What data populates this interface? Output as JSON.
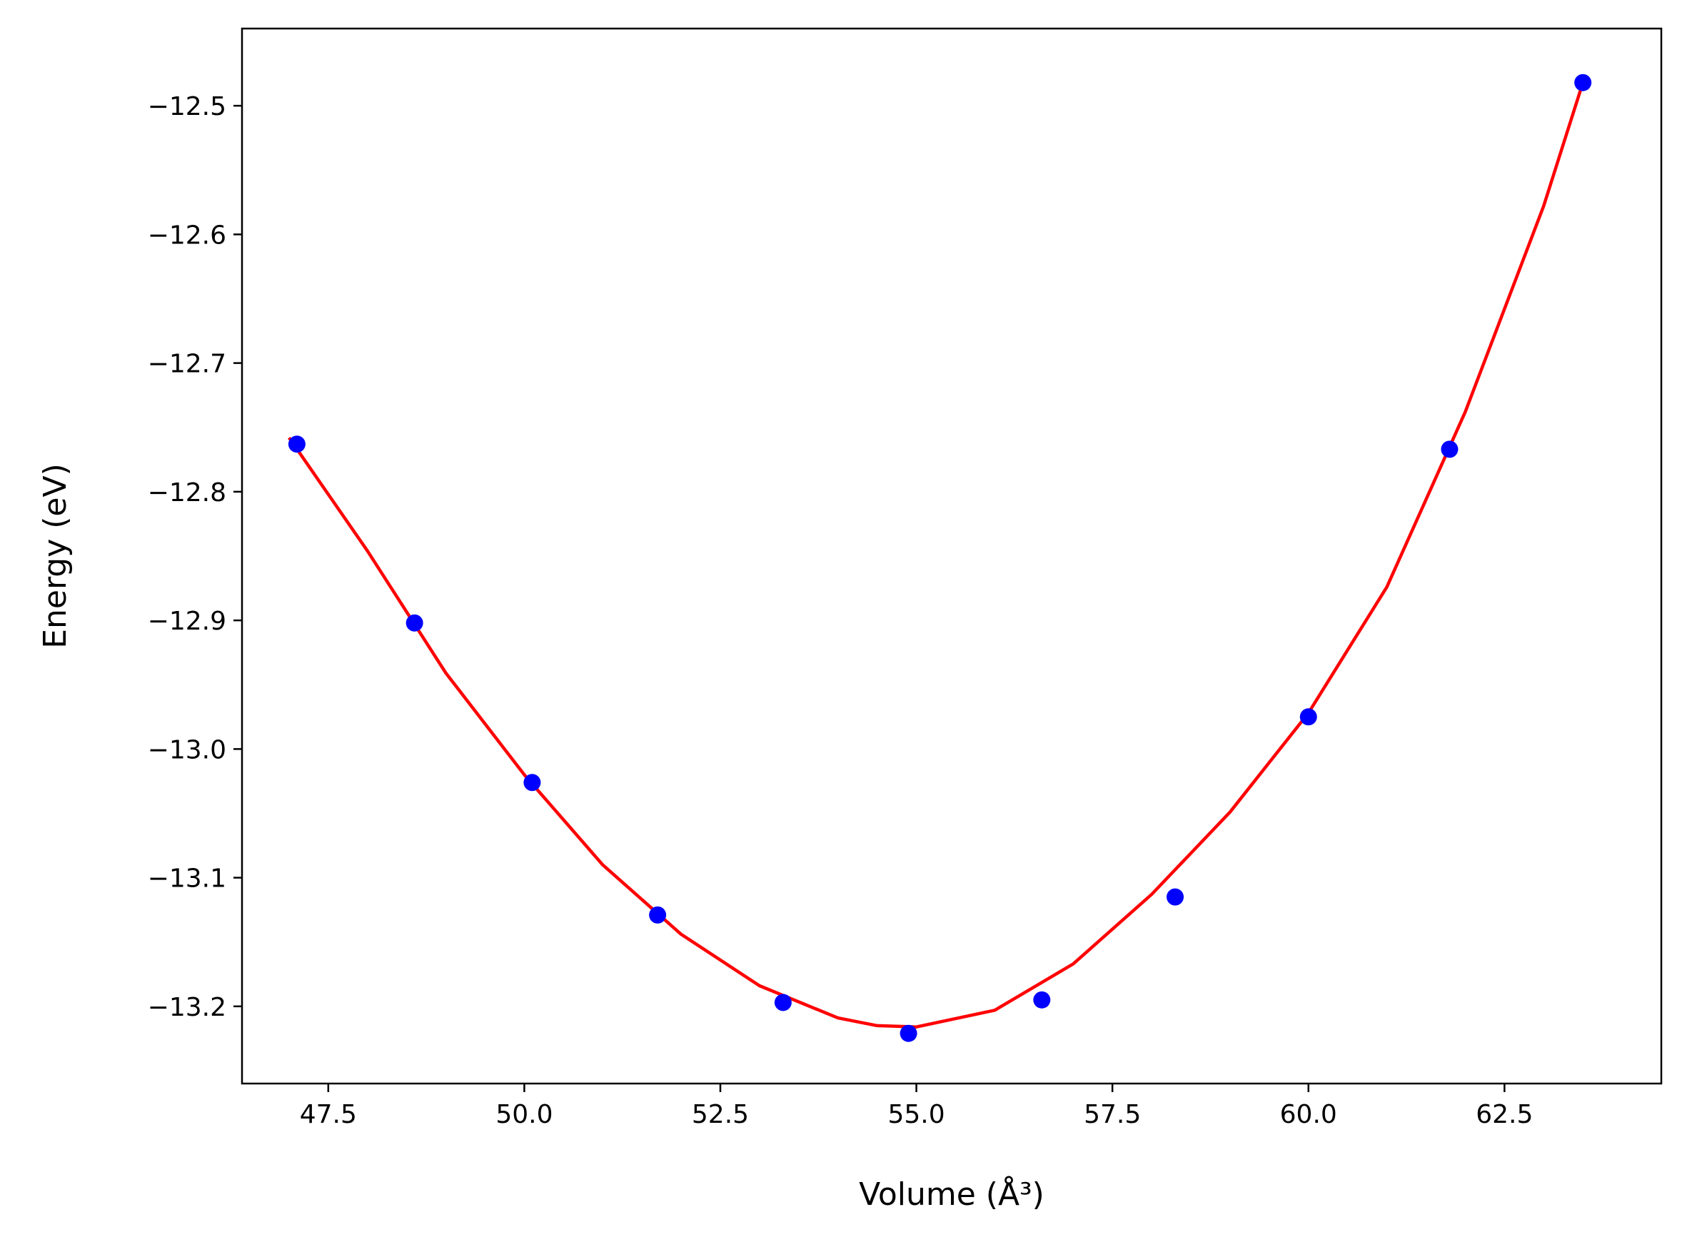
{
  "chart_data": {
    "type": "scatter",
    "xlabel": "Volume (Å³)",
    "ylabel": "Energy (eV)",
    "xlim": [
      46.4,
      64.5
    ],
    "ylim": [
      -13.26,
      -12.44
    ],
    "xticks": [
      47.5,
      50.0,
      52.5,
      55.0,
      57.5,
      60.0,
      62.5
    ],
    "xtick_labels": [
      "47.5",
      "50.0",
      "52.5",
      "55.0",
      "57.5",
      "60.0",
      "62.5"
    ],
    "yticks": [
      -12.5,
      -12.6,
      -12.7,
      -12.8,
      -12.9,
      -13.0,
      -13.1,
      -13.2
    ],
    "ytick_labels": [
      "−12.5",
      "−12.6",
      "−12.7",
      "−12.8",
      "−12.9",
      "−13.0",
      "−13.1",
      "−13.2"
    ],
    "grid": false,
    "series": [
      {
        "kind": "points",
        "color": "#0000ff",
        "x": [
          47.1,
          48.6,
          50.1,
          51.7,
          53.3,
          54.9,
          56.6,
          58.3,
          60.0,
          61.8,
          63.5
        ],
        "y": [
          -12.763,
          -12.902,
          -13.026,
          -13.129,
          -13.197,
          -13.221,
          -13.195,
          -13.115,
          -12.975,
          -12.767,
          -12.482
        ]
      },
      {
        "kind": "fit-curve",
        "color": "#ff0000",
        "x": [
          47.0,
          48.0,
          49.0,
          50.0,
          51.0,
          52.0,
          53.0,
          54.0,
          54.5,
          55.0,
          56.0,
          57.0,
          58.0,
          59.0,
          60.0,
          61.0,
          62.0,
          63.0,
          63.5
        ],
        "y": [
          -12.758,
          -12.846,
          -12.941,
          -13.02,
          -13.09,
          -13.144,
          -13.184,
          -13.209,
          -13.215,
          -13.216,
          -13.203,
          -13.167,
          -13.113,
          -13.049,
          -12.972,
          -12.874,
          -12.738,
          -12.578,
          -12.482
        ]
      }
    ]
  }
}
